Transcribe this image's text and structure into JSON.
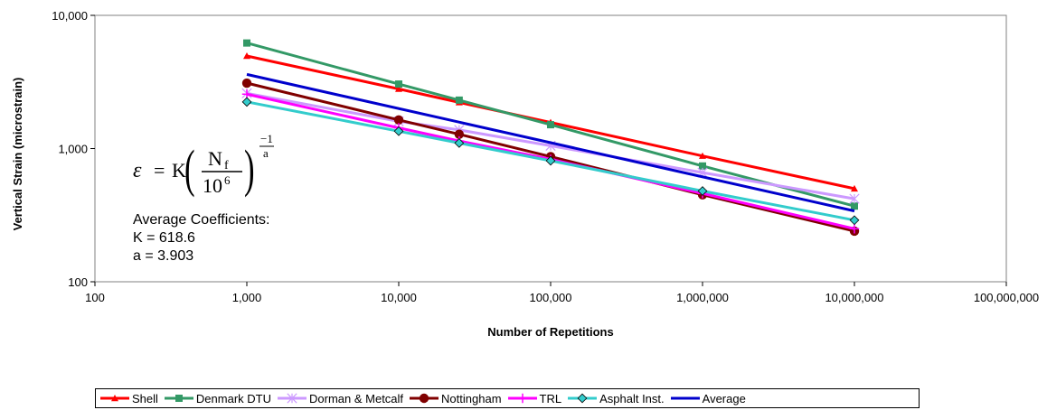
{
  "chart_data": {
    "type": "line",
    "xlabel": "Number of Repetitions",
    "ylabel": "Vertical Strain (microstrain)",
    "xscale": "log",
    "yscale": "log",
    "xlim": [
      100,
      100000000
    ],
    "ylim": [
      100,
      10000
    ],
    "x_ticks": [
      "100",
      "1,000",
      "10,000",
      "100,000",
      "1,000,000",
      "10,000,000",
      "100,000,000"
    ],
    "y_ticks": [
      "100",
      "1,000",
      "10,000"
    ],
    "grid": false,
    "legend_position": "bottom",
    "series": [
      {
        "name": "Shell",
        "color": "#ff0000",
        "marker": "triangle",
        "x": [
          1000,
          10000,
          25000,
          100000,
          1000000,
          10000000
        ],
        "y": [
          4950,
          2800,
          2220,
          1570,
          880,
          500
        ]
      },
      {
        "name": "Denmark DTU",
        "color": "#339966",
        "marker": "square",
        "x": [
          1000,
          10000,
          25000,
          100000,
          1000000,
          10000000
        ],
        "y": [
          6200,
          3050,
          2310,
          1510,
          740,
          370
        ]
      },
      {
        "name": "Dorman & Metcalf",
        "color": "#cc99ff",
        "marker": "star",
        "x": [
          1000,
          10000,
          25000,
          100000,
          1000000,
          10000000
        ],
        "y": [
          2600,
          1600,
          1380,
          1050,
          660,
          420
        ]
      },
      {
        "name": "Nottingham",
        "color": "#800000",
        "marker": "circle",
        "x": [
          1000,
          10000,
          25000,
          100000,
          1000000,
          10000000
        ],
        "y": [
          3100,
          1640,
          1280,
          870,
          450,
          240
        ]
      },
      {
        "name": "TRL",
        "color": "#ff00ff",
        "marker": "plus",
        "x": [
          1000,
          10000,
          25000,
          100000,
          1000000,
          10000000
        ],
        "y": [
          2560,
          1430,
          1140,
          830,
          460,
          250
        ]
      },
      {
        "name": "Asphalt Inst.",
        "color": "#33cccc",
        "marker": "diamond",
        "x": [
          1000,
          10000,
          25000,
          100000,
          1000000,
          10000000
        ],
        "y": [
          2240,
          1350,
          1100,
          810,
          480,
          290
        ]
      },
      {
        "name": "Average",
        "color": "#0000cc",
        "marker": "none",
        "x": [
          1000,
          10000000
        ],
        "y": [
          3600,
          340
        ]
      }
    ],
    "annotations": {
      "formula": {
        "epsilon": "ε",
        "equals": "=",
        "K": "K",
        "numerator": "N",
        "numerator_sub": "f",
        "denominator": "10",
        "denominator_sup": "6",
        "exponent_num": "−1",
        "exponent_den": "a"
      },
      "coefficients_title": "Average Coefficients:",
      "k_line": "K = 618.6",
      "a_line": "a = 3.903"
    }
  }
}
